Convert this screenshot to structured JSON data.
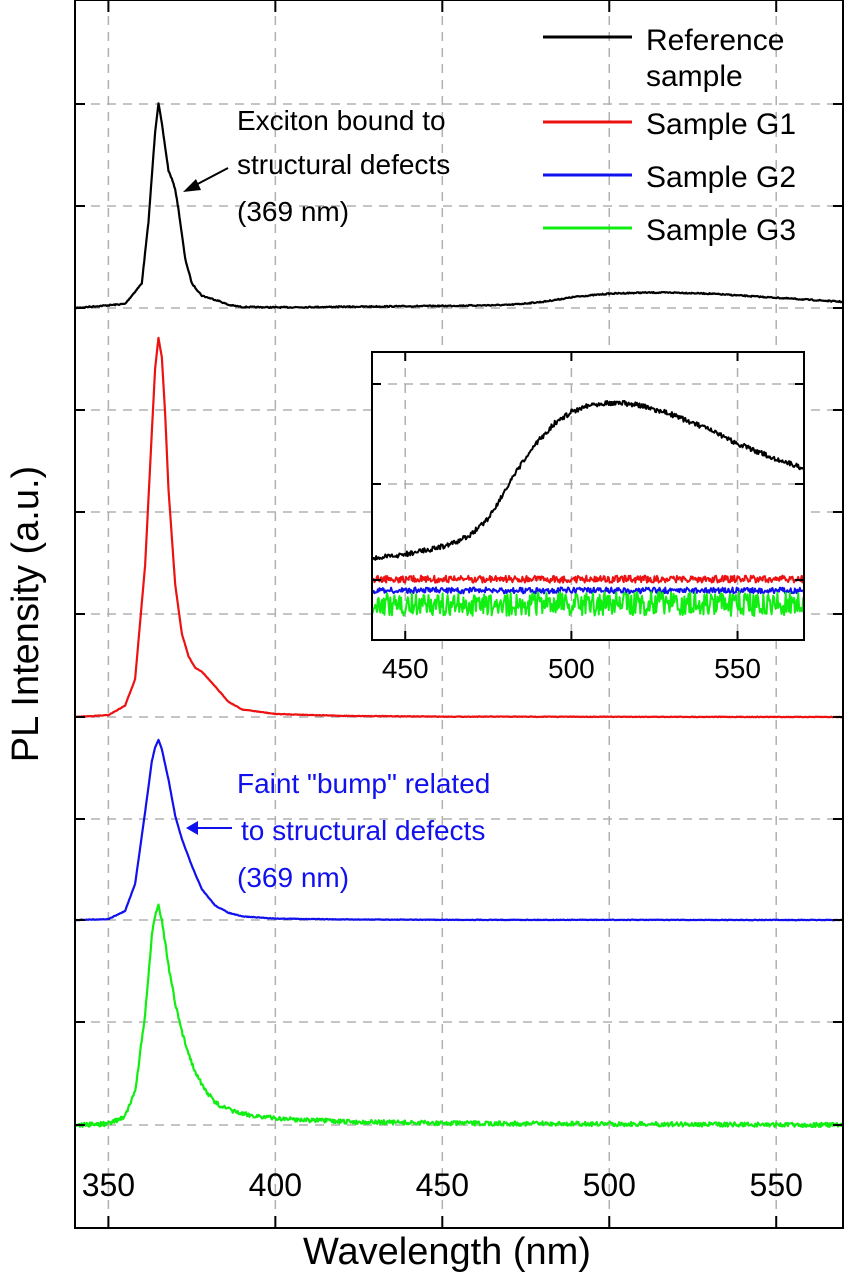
{
  "chart_data": [
    {
      "type": "line",
      "xlabel": "Wavelength (nm)",
      "ylabel": "PL Intensity (a.u.)",
      "xlim": [
        340,
        570
      ],
      "x_ticks": [
        "350",
        "400",
        "450",
        "500",
        "550"
      ],
      "grid": true,
      "legend_position": "top-right",
      "legend": [
        {
          "label": "Reference sample",
          "color": "#000000"
        },
        {
          "label": "Sample G1",
          "color": "#ee1111"
        },
        {
          "label": "Sample G2",
          "color": "#1111ee"
        },
        {
          "label": "Sample G3",
          "color": "#11ee11"
        }
      ],
      "series": [
        {
          "name": "Reference sample",
          "color": "#000000",
          "x": [
            340,
            355,
            360,
            362,
            364,
            365,
            366,
            368,
            369,
            370,
            371,
            372,
            373,
            375,
            378,
            380,
            383,
            386,
            390,
            400,
            450,
            470,
            480,
            490,
            500,
            510,
            520,
            530,
            540,
            550,
            560,
            570
          ],
          "y": [
            0.0,
            0.02,
            0.12,
            0.42,
            0.86,
            1.0,
            0.9,
            0.67,
            0.63,
            0.58,
            0.48,
            0.36,
            0.24,
            0.12,
            0.06,
            0.05,
            0.035,
            0.015,
            0.005,
            0.003,
            0.01,
            0.015,
            0.03,
            0.055,
            0.07,
            0.075,
            0.075,
            0.07,
            0.06,
            0.05,
            0.04,
            0.03
          ]
        },
        {
          "name": "Sample G1",
          "color": "#ee1111",
          "x": [
            340,
            350,
            355,
            358,
            361,
            363,
            364,
            365,
            366,
            367,
            368,
            370,
            372,
            374,
            376,
            378,
            380,
            383,
            386,
            390,
            400,
            420,
            450,
            570
          ],
          "y": [
            0.0,
            0.005,
            0.03,
            0.1,
            0.4,
            0.75,
            0.92,
            1.0,
            0.95,
            0.8,
            0.6,
            0.35,
            0.22,
            0.16,
            0.13,
            0.12,
            0.1,
            0.07,
            0.04,
            0.02,
            0.008,
            0.003,
            0.001,
            0.0
          ]
        },
        {
          "name": "Sample G2",
          "color": "#1111ee",
          "x": [
            340,
            350,
            355,
            358,
            361,
            363,
            364,
            365,
            366,
            368,
            370,
            372,
            375,
            378,
            382,
            386,
            390,
            400,
            420,
            450,
            570
          ],
          "y": [
            0.0,
            0.005,
            0.05,
            0.2,
            0.6,
            0.88,
            0.96,
            1.0,
            0.95,
            0.78,
            0.58,
            0.45,
            0.3,
            0.17,
            0.08,
            0.04,
            0.02,
            0.008,
            0.003,
            0.001,
            0.0
          ]
        },
        {
          "name": "Sample G3",
          "color": "#11ee11",
          "x": [
            340,
            350,
            355,
            358,
            361,
            363,
            364,
            365,
            366,
            368,
            370,
            372,
            375,
            378,
            382,
            386,
            390,
            400,
            420,
            450,
            570
          ],
          "y": [
            0.0,
            0.005,
            0.04,
            0.15,
            0.5,
            0.85,
            0.95,
            1.0,
            0.93,
            0.72,
            0.55,
            0.42,
            0.28,
            0.18,
            0.1,
            0.07,
            0.05,
            0.03,
            0.015,
            0.008,
            0.0
          ]
        }
      ],
      "annotations": [
        {
          "lines": [
            "Exciton bound to",
            "structural defects",
            "(369 nm)"
          ],
          "color": "#000000",
          "points_to": {
            "series": "Reference sample",
            "x": 370
          }
        },
        {
          "lines": [
            "Faint \"bump\" related",
            "to structural defects",
            "(369 nm)"
          ],
          "color": "#1111ee",
          "points_to": {
            "series": "Sample G2",
            "x": 371
          }
        }
      ]
    },
    {
      "type": "line",
      "role": "inset",
      "xlim": [
        440,
        570
      ],
      "x_ticks": [
        "450",
        "500",
        "550"
      ],
      "grid": true,
      "series": [
        {
          "name": "Reference sample",
          "color": "#000000",
          "x": [
            440,
            450,
            460,
            465,
            470,
            475,
            480,
            485,
            490,
            495,
            500,
            505,
            510,
            515,
            520,
            525,
            530,
            540,
            550,
            560,
            570
          ],
          "y": [
            0.2,
            0.22,
            0.25,
            0.27,
            0.31,
            0.38,
            0.5,
            0.62,
            0.72,
            0.8,
            0.85,
            0.88,
            0.89,
            0.89,
            0.88,
            0.86,
            0.84,
            0.78,
            0.71,
            0.65,
            0.6
          ]
        },
        {
          "name": "Sample G1",
          "color": "#ee1111",
          "x": [
            440,
            570
          ],
          "y": [
            0.11,
            0.11
          ]
        },
        {
          "name": "Sample G2",
          "color": "#1111ee",
          "x": [
            440,
            570
          ],
          "y": [
            0.06,
            0.06
          ]
        },
        {
          "name": "Sample G3",
          "color": "#11ee11",
          "x": [
            440,
            570
          ],
          "y": [
            0.0,
            0.0
          ]
        }
      ]
    }
  ]
}
